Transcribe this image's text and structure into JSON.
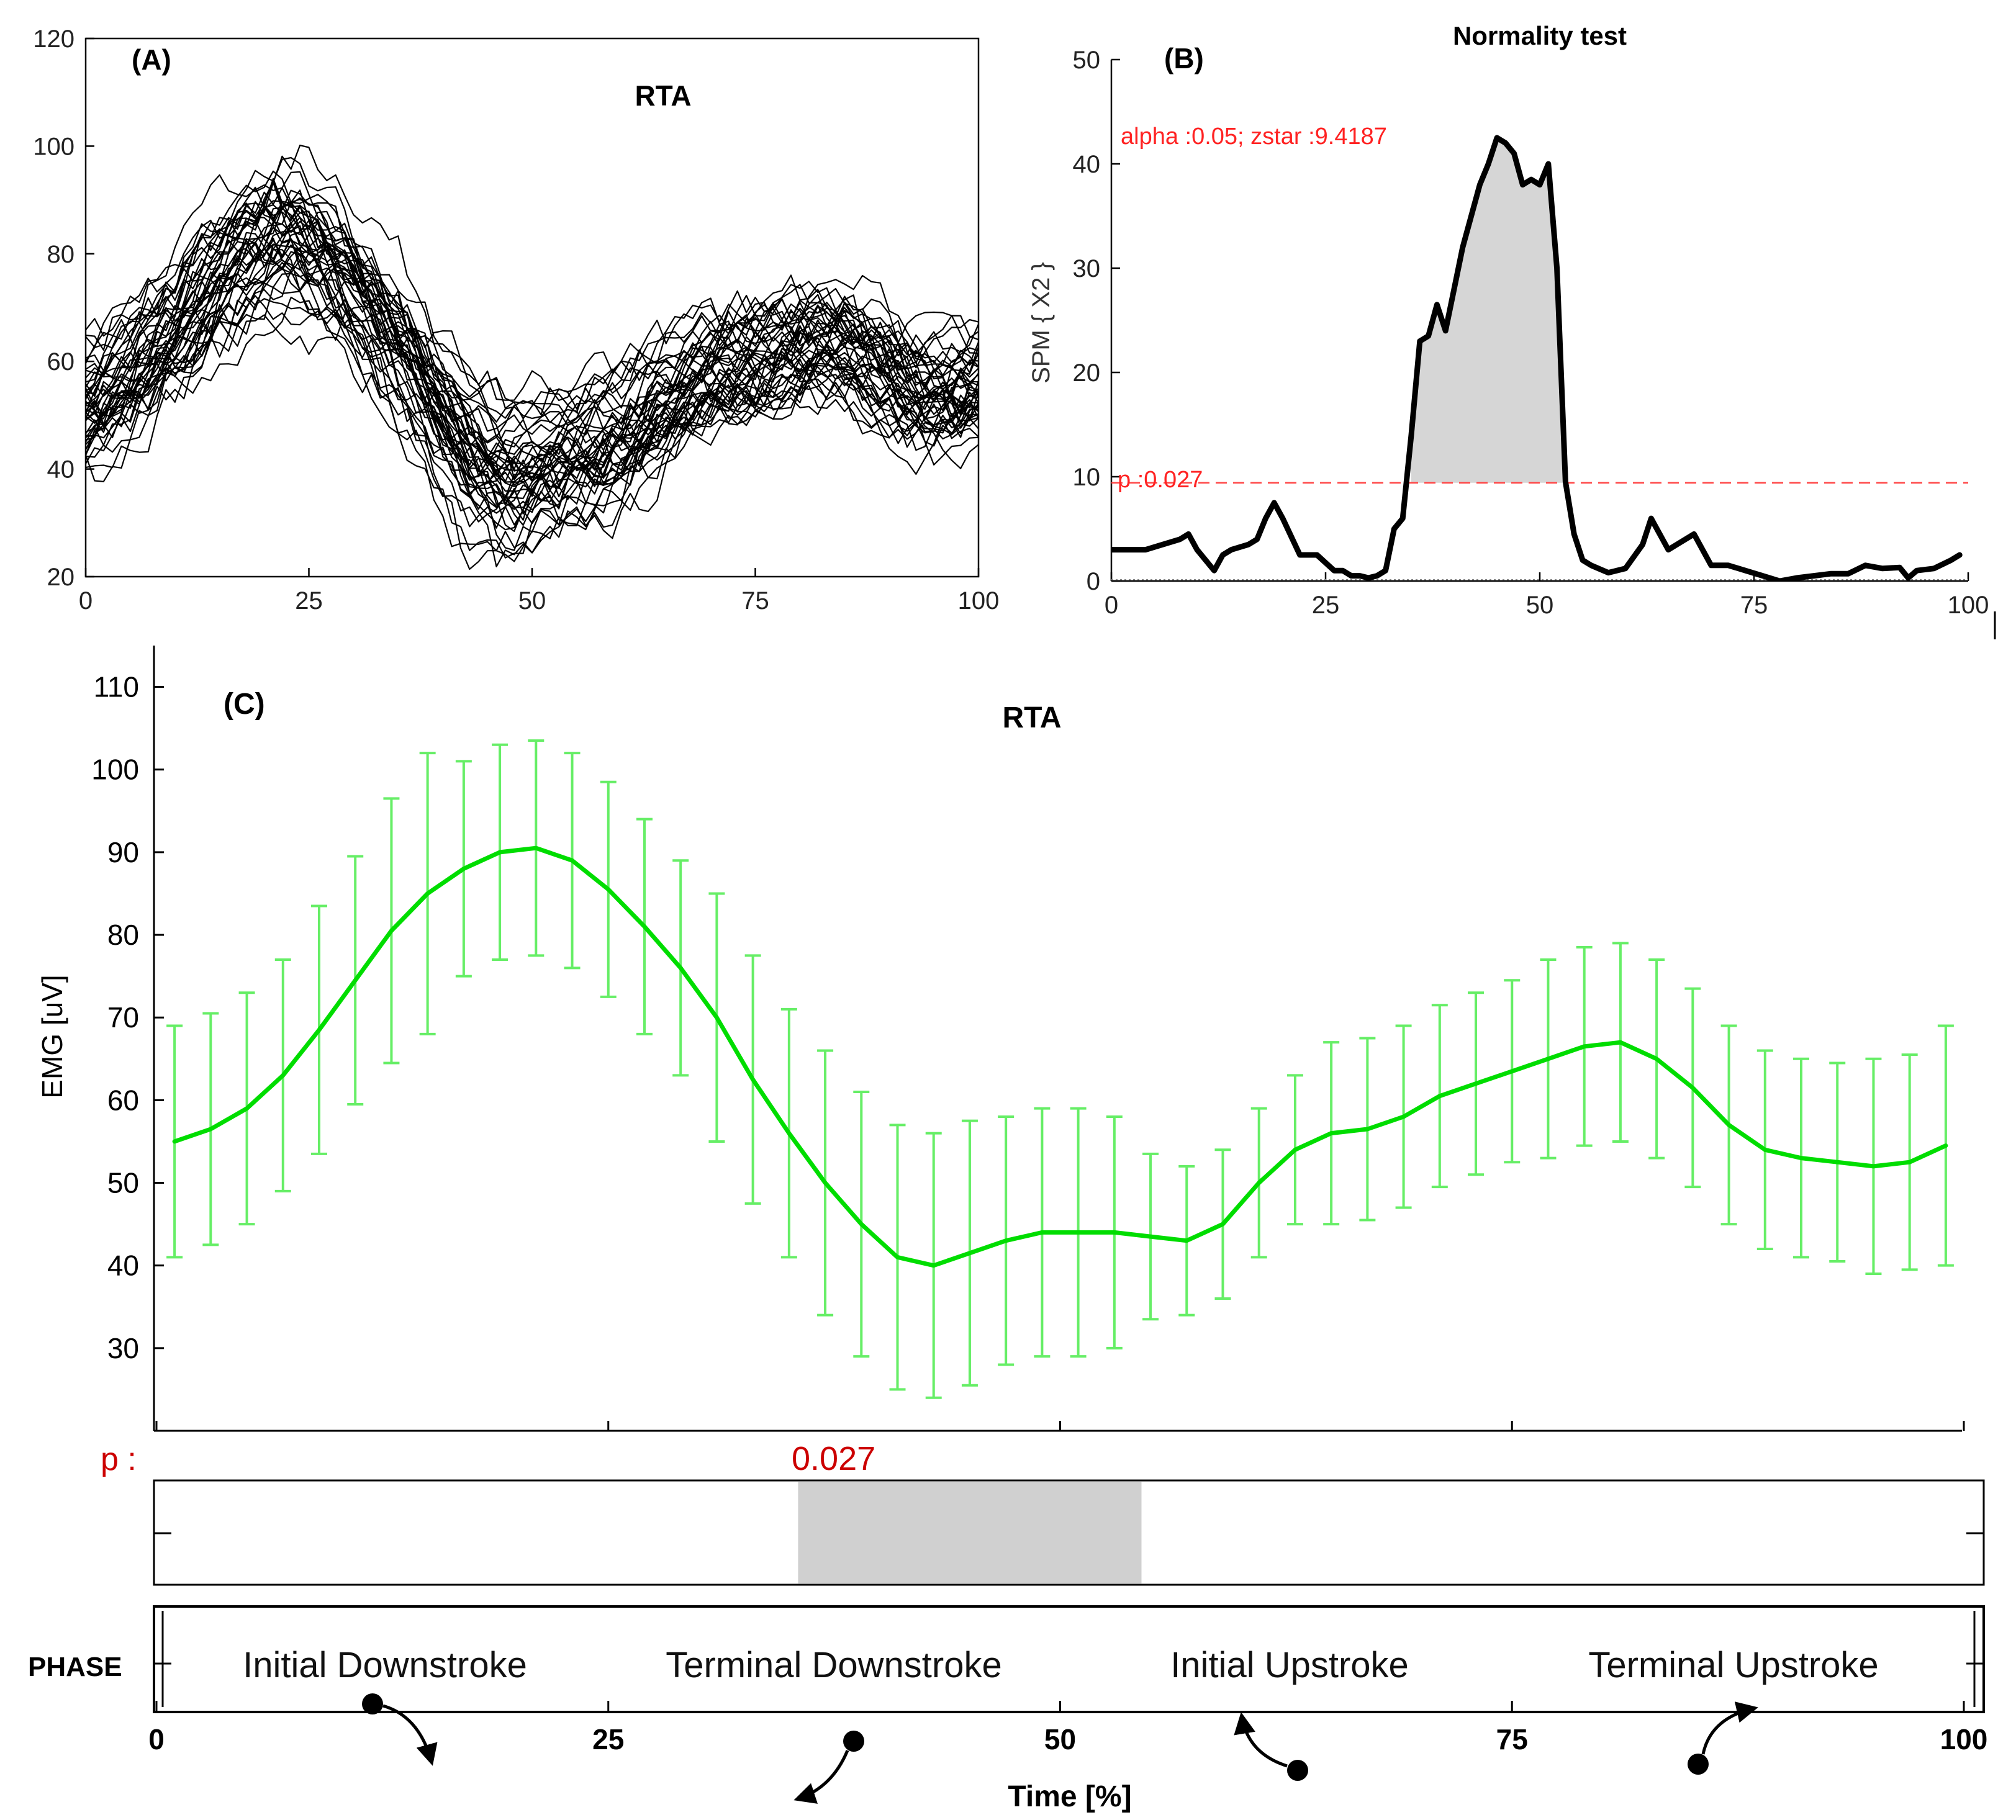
{
  "chart_data": [
    {
      "panel_label": "(A)",
      "title": "RTA",
      "type": "line",
      "description_note": "",
      "xlim": [
        0,
        100
      ],
      "ylim": [
        20,
        120
      ],
      "xticks": [
        0,
        25,
        50,
        75,
        100
      ],
      "yticks": [
        20,
        40,
        60,
        80,
        100,
        120
      ],
      "mean_profile": {
        "x": [
          0,
          5,
          10,
          15,
          20,
          22,
          25,
          30,
          35,
          40,
          45,
          50,
          55,
          60,
          65,
          70,
          75,
          80,
          85,
          90,
          95,
          100
        ],
        "y": [
          50,
          57,
          66,
          77,
          84,
          86,
          84,
          76,
          64,
          50,
          37,
          38,
          42,
          44,
          52,
          58,
          60,
          64,
          65,
          57,
          52,
          56
        ]
      },
      "series_count": 45,
      "color": "#000000"
    },
    {
      "panel_label": "(B)",
      "title": "Normality test",
      "type": "line",
      "ylabel": "SPM { X2 }",
      "xlim": [
        0,
        100
      ],
      "ylim": [
        0,
        50
      ],
      "xticks": [
        0,
        25,
        50,
        75,
        100
      ],
      "yticks": [
        0,
        10,
        20,
        30,
        40,
        50
      ],
      "annotation": "alpha :0.05;  zstar :9.4187",
      "threshold": 9.4187,
      "threshold_label": "p :0.027",
      "x": [
        0,
        2,
        4,
        6,
        8,
        9,
        10,
        12,
        13,
        14,
        16,
        17,
        18,
        19,
        20,
        22,
        24,
        26,
        27,
        28,
        29,
        30,
        31,
        32,
        33,
        34,
        35,
        36,
        37,
        38,
        39,
        40,
        41,
        42,
        43,
        44,
        45,
        46,
        47,
        48,
        49,
        50,
        51,
        52,
        53,
        54,
        55,
        56,
        58,
        60,
        62,
        63,
        64,
        65,
        66,
        68,
        70,
        72,
        74,
        76,
        78,
        80,
        82,
        84,
        86,
        88,
        90,
        92,
        93,
        94,
        96,
        98,
        99
      ],
      "y": [
        3,
        3,
        3,
        3.5,
        4,
        4.5,
        3,
        1,
        2.5,
        3,
        3.5,
        4,
        6,
        7.5,
        6,
        2.5,
        2.5,
        1,
        1,
        0.5,
        0.5,
        0.3,
        0.5,
        1,
        5,
        6,
        14,
        23,
        23.5,
        26.5,
        24,
        28,
        32,
        35,
        38,
        40,
        42.5,
        42,
        41,
        38,
        38.5,
        38,
        40,
        30,
        9.5,
        4.5,
        2,
        1.5,
        0.8,
        1.2,
        3.5,
        6,
        4.5,
        3,
        3.5,
        4.5,
        1.5,
        1.5,
        1,
        0.5,
        0,
        0.3,
        0.5,
        0.7,
        0.7,
        1.5,
        1.2,
        1.3,
        0.3,
        1,
        1.2,
        2,
        2.5
      ],
      "shaded_range": [
        35,
        54
      ],
      "color": "#000000"
    },
    {
      "panel_label": "(C)",
      "title": "RTA",
      "type": "line",
      "ylabel": "EMG [uV]",
      "xlabel": "Time [%]",
      "xlim": [
        0,
        100
      ],
      "ylim": [
        20,
        115
      ],
      "xticks": [
        0,
        25,
        50,
        75,
        100
      ],
      "yticks": [
        30,
        40,
        50,
        60,
        70,
        80,
        90,
        100,
        110
      ],
      "mean": {
        "x": [
          1,
          3,
          5,
          7,
          9,
          11,
          13,
          15,
          17,
          19,
          21,
          23,
          25,
          27,
          29,
          31,
          33,
          35,
          37,
          39,
          41,
          43,
          45,
          47,
          49,
          51,
          53,
          55,
          57,
          59,
          61,
          63,
          65,
          67,
          69,
          71,
          73,
          75,
          77,
          79,
          81,
          83,
          85,
          87,
          89,
          91,
          93,
          95,
          97,
          99
        ],
        "y": [
          55.0,
          56.5,
          59.0,
          63.0,
          68.5,
          74.5,
          80.5,
          85.0,
          88.0,
          90.0,
          90.5,
          89.0,
          85.5,
          81.0,
          76.0,
          70.0,
          62.5,
          56.0,
          50.0,
          45.0,
          41.0,
          40.0,
          41.5,
          43.0,
          44.0,
          44.0,
          44.0,
          43.5,
          43.0,
          45.0,
          50.0,
          54.0,
          56.0,
          56.5,
          58.0,
          60.5,
          62.0,
          63.5,
          65.0,
          66.5,
          67.0,
          65.0,
          61.5,
          57.0,
          54.0,
          53.0,
          52.5,
          52.0,
          52.5,
          54.5
        ]
      },
      "sd": [
        14,
        14,
        14,
        14,
        15,
        15,
        16,
        17,
        13,
        13,
        13,
        13,
        13,
        13,
        13,
        15,
        15,
        15,
        16,
        16,
        16,
        16,
        16,
        15,
        15,
        15,
        14,
        10,
        9,
        9,
        9,
        9,
        11,
        11,
        11,
        11,
        11,
        11,
        12,
        12,
        12,
        12,
        12,
        12,
        12,
        12,
        12,
        13,
        13,
        14.5
      ],
      "color": "#00dd00",
      "errorbar_color": "#66ee66"
    }
  ],
  "p_bar": {
    "label": "p :",
    "value_label": "0.027",
    "range": [
      35.5,
      54.5
    ]
  },
  "phase_bar": {
    "label": "PHASE",
    "phases": [
      "Initial Downstroke",
      "Terminal Downstroke",
      "Initial Upstroke",
      "Terminal Upstroke"
    ]
  }
}
